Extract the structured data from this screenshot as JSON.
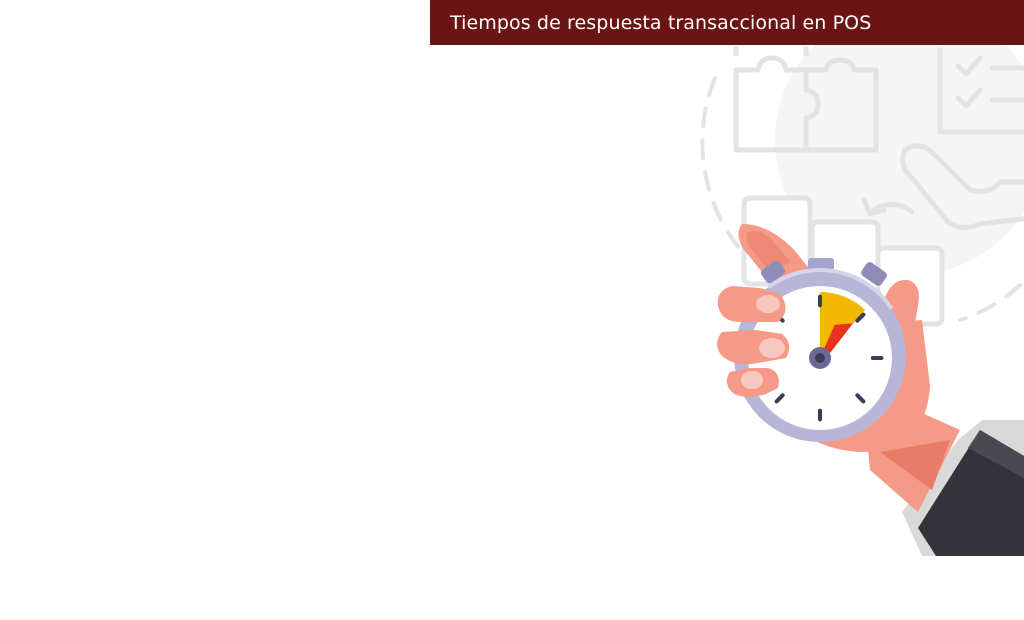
{
  "slide": {
    "title": "Tiempos de respuesta transaccional en POS"
  },
  "illustration": {
    "subject": "hand-holding-stopwatch",
    "background_icons": [
      "puzzle-icon",
      "checklist-icon",
      "handshake-icon",
      "refresh-arrow-icon",
      "documents-icon"
    ],
    "stopwatch_elapsed_fraction": 0.12
  },
  "colors": {
    "title_bar": "#6b1414",
    "title_text": "#ffffff",
    "skin": "#f59a86",
    "skin_dark": "#ea7b67",
    "sleeve": "#34333a",
    "cuff": "#d9d9d9",
    "watch_ring": "#b7b6d6",
    "watch_face": "#ffffff",
    "sector_yellow": "#f5b800",
    "sector_red": "#e8341c",
    "ghost_lines": "#e3e3e3"
  }
}
